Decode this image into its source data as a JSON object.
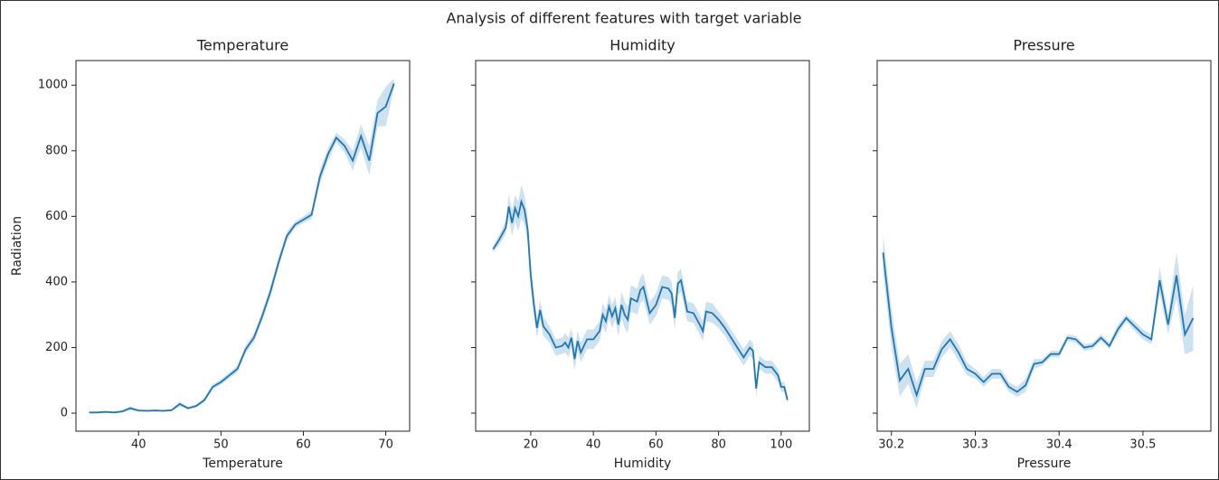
{
  "title": "Analysis of different features with target variable",
  "chart_data": [
    {
      "type": "line",
      "title": "Temperature",
      "xlabel": "Temperature",
      "ylabel": "Radiation",
      "x": [
        34,
        35,
        36,
        37,
        38,
        39,
        40,
        41,
        42,
        43,
        44,
        45,
        46,
        47,
        48,
        49,
        50,
        51,
        52,
        53,
        54,
        55,
        56,
        57,
        58,
        59,
        60,
        61,
        62,
        63,
        64,
        65,
        66,
        67,
        68,
        69,
        70,
        71
      ],
      "series": [
        {
          "color": "#1f77b4",
          "values": [
            2,
            2,
            4,
            2,
            5,
            15,
            8,
            7,
            8,
            7,
            9,
            28,
            15,
            22,
            40,
            80,
            95,
            115,
            135,
            195,
            230,
            295,
            370,
            460,
            540,
            575,
            590,
            605,
            720,
            790,
            840,
            815,
            770,
            845,
            770,
            915,
            935,
            1005
          ],
          "errors": [
            2,
            2,
            3,
            2,
            3,
            6,
            3,
            3,
            3,
            3,
            3,
            8,
            4,
            5,
            7,
            8,
            8,
            9,
            10,
            12,
            13,
            15,
            15,
            15,
            13,
            10,
            10,
            13,
            20,
            20,
            15,
            20,
            30,
            35,
            45,
            40,
            60,
            15
          ]
        }
      ],
      "xlim": [
        32.4,
        72.9
      ],
      "ylim": [
        -55,
        1075
      ],
      "xticks": [
        40,
        50,
        60,
        70
      ],
      "yticks": [
        0,
        200,
        400,
        600,
        800,
        1000
      ],
      "ytick_labels": true
    },
    {
      "type": "line",
      "title": "Humidity",
      "xlabel": "Humidity",
      "x": [
        8,
        10,
        12,
        13,
        14,
        15,
        16,
        17,
        18,
        19,
        20,
        21,
        22,
        23,
        24,
        26,
        28,
        30,
        31,
        32,
        33,
        34,
        35,
        36,
        38,
        40,
        42,
        43,
        44,
        45,
        46,
        47,
        48,
        49,
        50,
        51,
        52,
        54,
        55,
        56,
        58,
        60,
        62,
        64,
        65,
        66,
        67,
        68,
        70,
        72,
        74,
        75,
        76,
        78,
        80,
        82,
        84,
        86,
        88,
        90,
        91,
        92,
        93,
        95,
        97,
        99,
        100,
        101,
        102
      ],
      "series": [
        {
          "color": "#1f77b4",
          "values": [
            500,
            530,
            565,
            630,
            580,
            625,
            600,
            645,
            620,
            560,
            420,
            330,
            260,
            315,
            265,
            240,
            200,
            205,
            215,
            200,
            230,
            165,
            220,
            185,
            225,
            225,
            250,
            300,
            280,
            325,
            295,
            320,
            270,
            330,
            300,
            285,
            350,
            340,
            375,
            385,
            305,
            330,
            385,
            380,
            365,
            290,
            395,
            405,
            310,
            305,
            270,
            250,
            310,
            305,
            285,
            260,
            230,
            200,
            170,
            200,
            190,
            75,
            155,
            140,
            140,
            115,
            80,
            80,
            40
          ],
          "errors": [
            10,
            15,
            20,
            35,
            40,
            40,
            45,
            50,
            45,
            40,
            40,
            35,
            30,
            30,
            30,
            25,
            25,
            25,
            30,
            30,
            30,
            35,
            30,
            30,
            30,
            30,
            30,
            35,
            35,
            35,
            35,
            35,
            35,
            40,
            40,
            40,
            40,
            40,
            40,
            40,
            35,
            35,
            35,
            35,
            35,
            35,
            35,
            35,
            30,
            30,
            30,
            30,
            30,
            30,
            25,
            25,
            25,
            25,
            25,
            25,
            25,
            25,
            20,
            20,
            20,
            20,
            15,
            15,
            10
          ]
        }
      ],
      "xlim": [
        2.4,
        109
      ],
      "ylim": [
        -55,
        1075
      ],
      "xticks": [
        20,
        40,
        60,
        80,
        100
      ],
      "yticks": [
        0,
        200,
        400,
        600,
        800,
        1000
      ],
      "ytick_labels": false
    },
    {
      "type": "line",
      "title": "Pressure",
      "xlabel": "Pressure",
      "x": [
        30.19,
        30.2,
        30.21,
        30.22,
        30.23,
        30.24,
        30.25,
        30.26,
        30.27,
        30.28,
        30.29,
        30.3,
        30.31,
        30.32,
        30.33,
        30.34,
        30.35,
        30.36,
        30.37,
        30.38,
        30.39,
        30.4,
        30.41,
        30.42,
        30.43,
        30.44,
        30.45,
        30.46,
        30.47,
        30.48,
        30.49,
        30.5,
        30.51,
        30.52,
        30.53,
        30.54,
        30.55,
        30.56
      ],
      "series": [
        {
          "color": "#1f77b4",
          "values": [
            490,
            260,
            100,
            135,
            55,
            135,
            135,
            195,
            225,
            185,
            135,
            120,
            95,
            120,
            120,
            80,
            65,
            85,
            150,
            155,
            180,
            180,
            230,
            225,
            200,
            205,
            230,
            205,
            255,
            290,
            265,
            240,
            225,
            405,
            270,
            420,
            240,
            290
          ],
          "errors": [
            55,
            60,
            50,
            45,
            40,
            25,
            25,
            25,
            25,
            25,
            20,
            15,
            15,
            15,
            15,
            15,
            15,
            20,
            15,
            10,
            10,
            10,
            10,
            10,
            10,
            10,
            10,
            10,
            15,
            10,
            15,
            15,
            15,
            40,
            30,
            70,
            60,
            100
          ]
        }
      ],
      "xlim": [
        30.183,
        30.581
      ],
      "ylim": [
        -55,
        1075
      ],
      "xticks": [
        30.2,
        30.3,
        30.4,
        30.5
      ],
      "yticks": [
        0,
        200,
        400,
        600,
        800,
        1000
      ],
      "ytick_labels": false
    }
  ]
}
